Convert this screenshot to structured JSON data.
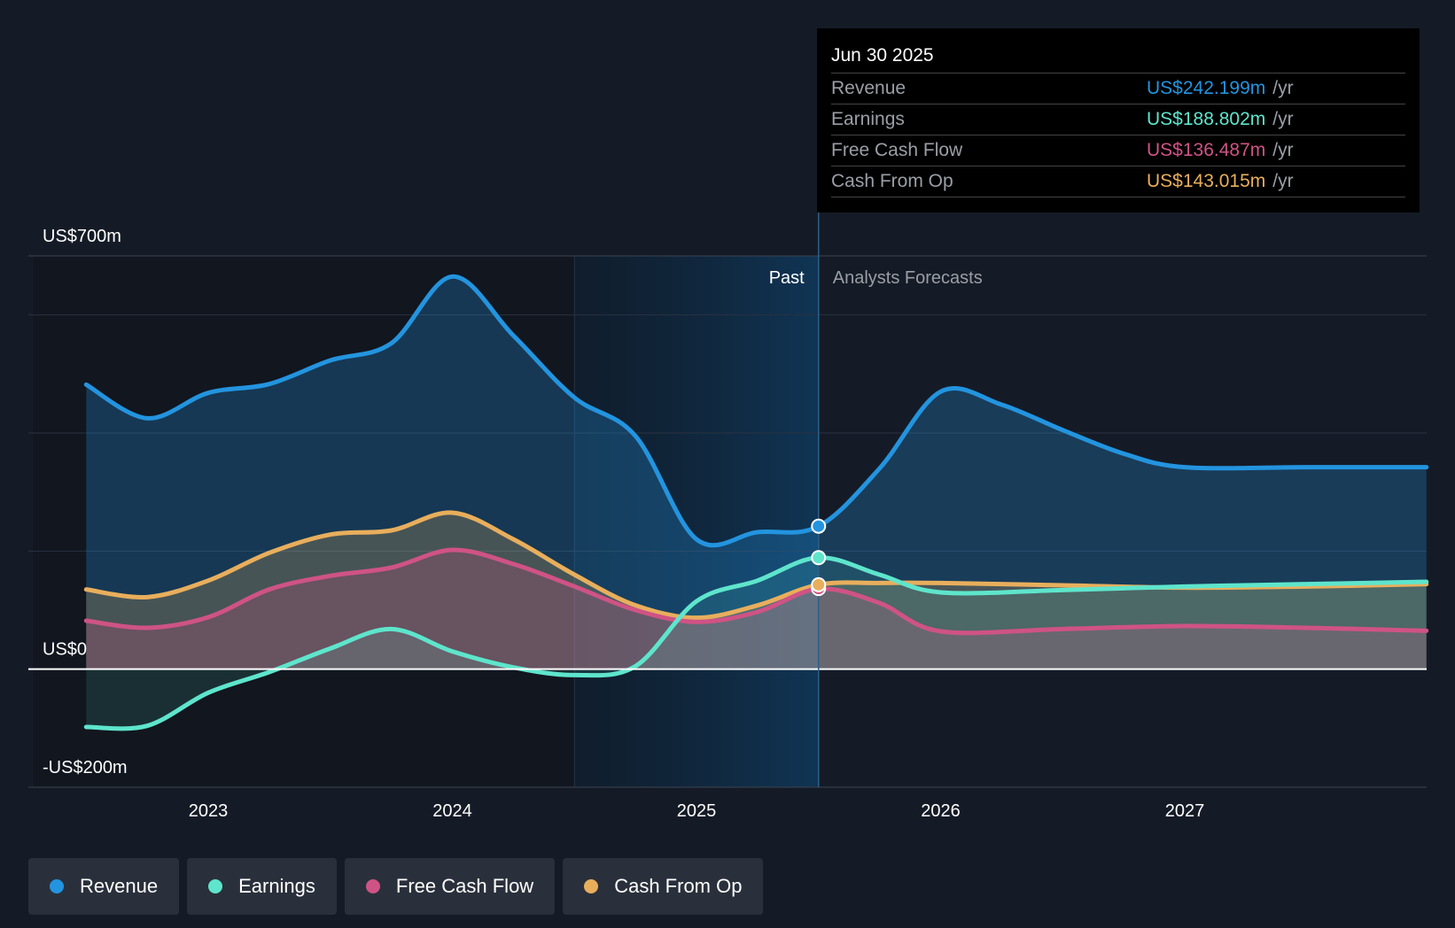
{
  "chart_data": {
    "type": "area",
    "y_unit": "US$m",
    "ylim": [
      -200,
      700
    ],
    "xlim": [
      2022.25,
      2027.99
    ],
    "y_axis_labels": [
      {
        "value": 700,
        "text": "US$700m"
      },
      {
        "value": 0,
        "text": "US$0"
      },
      {
        "value": -200,
        "text": "-US$200m"
      }
    ],
    "gridlines": [
      700,
      600,
      400,
      200
    ],
    "x_ticks": [
      {
        "value": 2023,
        "text": "2023"
      },
      {
        "value": 2024,
        "text": "2024"
      },
      {
        "value": 2025,
        "text": "2025"
      },
      {
        "value": 2026,
        "text": "2026"
      },
      {
        "value": 2027,
        "text": "2027"
      }
    ],
    "past_label": "Past",
    "forecast_label": "Analysts Forecasts",
    "past_shade_start": 2024.5,
    "divider_x": 2025.5,
    "series": [
      {
        "name": "Revenue",
        "color": "#2394df",
        "fill_opacity": 0.28,
        "points": [
          [
            2022.5,
            482
          ],
          [
            2022.75,
            425
          ],
          [
            2023,
            468
          ],
          [
            2023.25,
            483
          ],
          [
            2023.5,
            523
          ],
          [
            2023.75,
            552
          ],
          [
            2024,
            665
          ],
          [
            2024.25,
            565
          ],
          [
            2024.5,
            460
          ],
          [
            2024.75,
            395
          ],
          [
            2025,
            220
          ],
          [
            2025.25,
            232
          ],
          [
            2025.5,
            242
          ],
          [
            2025.75,
            340
          ],
          [
            2026,
            470
          ],
          [
            2026.25,
            448
          ],
          [
            2026.5,
            405
          ],
          [
            2026.75,
            365
          ],
          [
            2027,
            342
          ],
          [
            2027.5,
            342
          ],
          [
            2027.99,
            342
          ]
        ]
      },
      {
        "name": "Cash From Op",
        "color": "#e8ae5c",
        "fill_opacity": 0.24,
        "points": [
          [
            2022.5,
            135
          ],
          [
            2022.75,
            122
          ],
          [
            2023,
            150
          ],
          [
            2023.25,
            197
          ],
          [
            2023.5,
            228
          ],
          [
            2023.75,
            235
          ],
          [
            2024,
            265
          ],
          [
            2024.25,
            220
          ],
          [
            2024.5,
            160
          ],
          [
            2024.75,
            108
          ],
          [
            2025,
            87
          ],
          [
            2025.25,
            108
          ],
          [
            2025.5,
            143
          ],
          [
            2025.75,
            146
          ],
          [
            2026,
            146
          ],
          [
            2026.5,
            142
          ],
          [
            2027,
            138
          ],
          [
            2027.5,
            140
          ],
          [
            2027.99,
            144
          ]
        ]
      },
      {
        "name": "Free Cash Flow",
        "color": "#cf5385",
        "fill_opacity": 0.24,
        "points": [
          [
            2022.5,
            82
          ],
          [
            2022.75,
            70
          ],
          [
            2023,
            88
          ],
          [
            2023.25,
            135
          ],
          [
            2023.5,
            158
          ],
          [
            2023.75,
            172
          ],
          [
            2024,
            202
          ],
          [
            2024.25,
            178
          ],
          [
            2024.5,
            140
          ],
          [
            2024.75,
            100
          ],
          [
            2025,
            80
          ],
          [
            2025.25,
            97
          ],
          [
            2025.5,
            136
          ],
          [
            2025.75,
            112
          ],
          [
            2026,
            64
          ],
          [
            2026.5,
            68
          ],
          [
            2027,
            73
          ],
          [
            2027.5,
            70
          ],
          [
            2027.99,
            65
          ]
        ]
      },
      {
        "name": "Earnings",
        "color": "#5ee5cc",
        "fill_opacity": 0.12,
        "points": [
          [
            2022.5,
            -98
          ],
          [
            2022.75,
            -96
          ],
          [
            2023,
            -40
          ],
          [
            2023.25,
            -5
          ],
          [
            2023.5,
            35
          ],
          [
            2023.75,
            68
          ],
          [
            2024,
            30
          ],
          [
            2024.25,
            3
          ],
          [
            2024.5,
            -10
          ],
          [
            2024.75,
            5
          ],
          [
            2025,
            115
          ],
          [
            2025.25,
            150
          ],
          [
            2025.5,
            189
          ],
          [
            2025.75,
            160
          ],
          [
            2026,
            130
          ],
          [
            2026.5,
            134
          ],
          [
            2027,
            140
          ],
          [
            2027.5,
            144
          ],
          [
            2027.99,
            148
          ]
        ]
      }
    ],
    "tooltip": {
      "date": "Jun 30 2025",
      "x": 2025.5,
      "unit_suffix": "/yr",
      "rows": [
        {
          "label": "Revenue",
          "value": "US$242.199m",
          "color": "#2394df",
          "y": 242.199
        },
        {
          "label": "Earnings",
          "value": "US$188.802m",
          "color": "#5ee5cc",
          "y": 188.802
        },
        {
          "label": "Free Cash Flow",
          "value": "US$136.487m",
          "color": "#cf5385",
          "y": 136.487
        },
        {
          "label": "Cash From Op",
          "value": "US$143.015m",
          "color": "#e8ae5c",
          "y": 143.015
        }
      ]
    }
  },
  "legend": [
    {
      "label": "Revenue",
      "color": "#2394df"
    },
    {
      "label": "Earnings",
      "color": "#5ee5cc"
    },
    {
      "label": "Free Cash Flow",
      "color": "#cf5385"
    },
    {
      "label": "Cash From Op",
      "color": "#e8ae5c"
    }
  ]
}
